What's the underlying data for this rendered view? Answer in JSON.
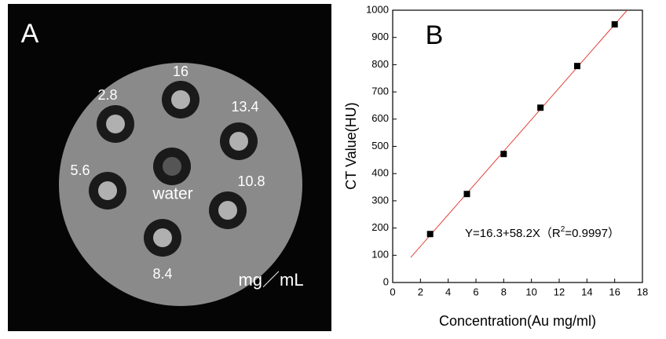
{
  "panel_a": {
    "label": "A",
    "wells": [
      "16",
      "2.8",
      "13.4",
      "water",
      "5.6",
      "10.8",
      "8.4"
    ],
    "unit": "mg／mL"
  },
  "chart_data": {
    "type": "scatter",
    "label": "B",
    "x_label": "Concentration(Au mg/ml)",
    "y_label": "CT Value(HU)",
    "x": [
      2.7,
      5.35,
      8.0,
      10.65,
      13.3,
      16.0
    ],
    "values": [
      178,
      325,
      472,
      642,
      795,
      948
    ],
    "color": "#000000",
    "fit_line": {
      "x": [
        1.3,
        16.9
      ],
      "values": [
        92,
        1000
      ],
      "color": "#e0433a"
    },
    "annotation": [
      "Y=16.3+58.2X（R",
      "2",
      "=0.9997）"
    ],
    "xlim": [
      0,
      18
    ],
    "xticks": [
      0,
      2,
      4,
      6,
      8,
      10,
      12,
      14,
      16,
      18
    ],
    "ylim": [
      0,
      1000
    ],
    "yticks": [
      0,
      100,
      200,
      300,
      400,
      500,
      600,
      700,
      800,
      900,
      1000
    ]
  }
}
